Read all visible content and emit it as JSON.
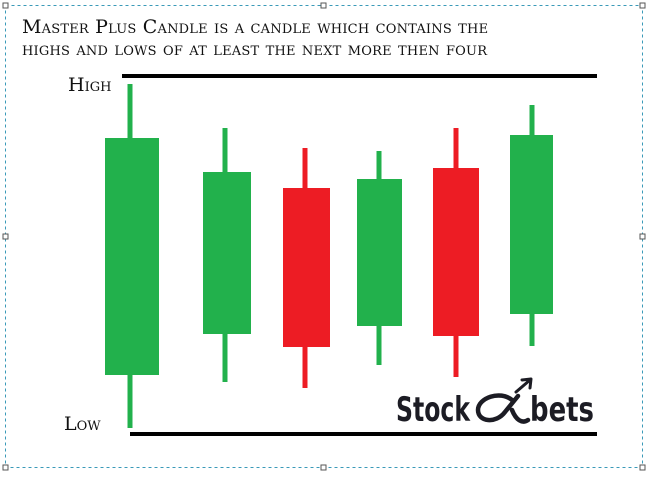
{
  "title_lines": [
    "Master Plus Candle is a candle which contains the",
    "highs and lows of at least the next more then four"
  ],
  "high_label": "High",
  "low_label": "Low",
  "logo": {
    "left": "Stock",
    "right": "bets"
  }
}
